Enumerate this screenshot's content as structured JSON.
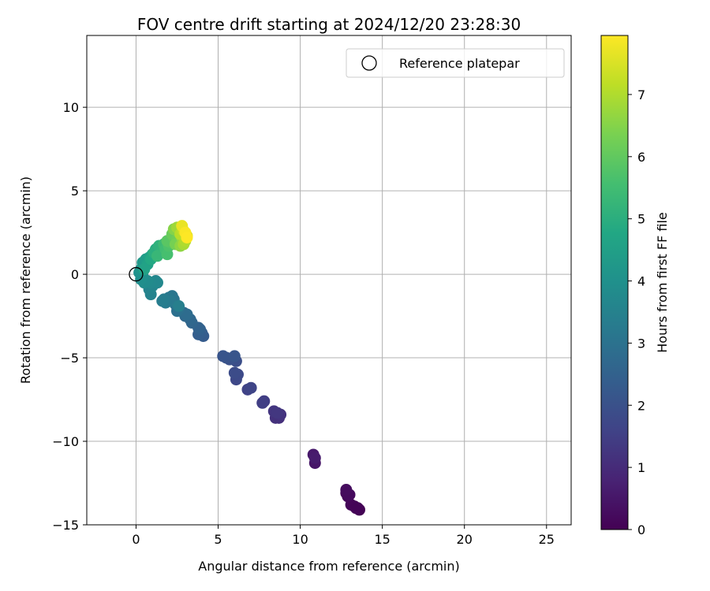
{
  "chart_data": {
    "type": "scatter",
    "title": "FOV centre drift starting at 2024/12/20 23:28:30",
    "xlabel": "Angular distance from reference (arcmin)",
    "ylabel": "Rotation from reference (arcmin)",
    "xlim": [
      -3,
      26.5
    ],
    "ylim": [
      -15,
      14.3
    ],
    "xticks": [
      0,
      5,
      10,
      15,
      20,
      25
    ],
    "yticks": [
      -15,
      -10,
      -5,
      0,
      5,
      10
    ],
    "grid": true,
    "legend": {
      "placement": "top-right",
      "entries": [
        "Reference platepar"
      ]
    },
    "reference_point": {
      "x": 0,
      "y": 0,
      "label": "Reference platepar"
    },
    "colorbar": {
      "label": "Hours from first FF file",
      "colormap": "viridis",
      "range": [
        0,
        7.95
      ],
      "ticks": [
        0,
        1,
        2,
        3,
        4,
        5,
        6,
        7
      ]
    },
    "series": [
      {
        "points": [
          {
            "x": 13.6,
            "y": -14.1,
            "c": 0.0
          },
          {
            "x": 13.3,
            "y": -13.9,
            "c": 0.03
          },
          {
            "x": 13.5,
            "y": -14.0,
            "c": 0.06
          },
          {
            "x": 13.1,
            "y": -13.8,
            "c": 0.1
          },
          {
            "x": 12.9,
            "y": -13.3,
            "c": 0.14
          },
          {
            "x": 12.8,
            "y": -13.1,
            "c": 0.18
          },
          {
            "x": 13.0,
            "y": -13.2,
            "c": 0.22
          },
          {
            "x": 12.8,
            "y": -12.9,
            "c": 0.26
          },
          {
            "x": 13.4,
            "y": -14.0,
            "c": 0.08
          },
          {
            "x": 10.9,
            "y": -11.3,
            "c": 0.5
          },
          {
            "x": 10.8,
            "y": -10.8,
            "c": 0.56
          },
          {
            "x": 10.9,
            "y": -11.0,
            "c": 0.62
          },
          {
            "x": 8.7,
            "y": -8.6,
            "c": 1.1
          },
          {
            "x": 8.5,
            "y": -8.6,
            "c": 1.15
          },
          {
            "x": 8.8,
            "y": -8.4,
            "c": 1.2
          },
          {
            "x": 8.4,
            "y": -8.2,
            "c": 1.25
          },
          {
            "x": 8.6,
            "y": -8.3,
            "c": 1.3
          },
          {
            "x": 7.8,
            "y": -7.6,
            "c": 1.45
          },
          {
            "x": 7.7,
            "y": -7.7,
            "c": 1.5
          },
          {
            "x": 6.8,
            "y": -6.9,
            "c": 1.6
          },
          {
            "x": 7.0,
            "y": -6.8,
            "c": 1.65
          },
          {
            "x": 6.1,
            "y": -6.3,
            "c": 1.75
          },
          {
            "x": 6.2,
            "y": -6.0,
            "c": 1.8
          },
          {
            "x": 6.0,
            "y": -5.9,
            "c": 1.85
          },
          {
            "x": 6.1,
            "y": -5.2,
            "c": 1.9
          },
          {
            "x": 5.9,
            "y": -5.0,
            "c": 1.95
          },
          {
            "x": 5.7,
            "y": -5.1,
            "c": 2.0
          },
          {
            "x": 5.5,
            "y": -5.0,
            "c": 2.05
          },
          {
            "x": 5.3,
            "y": -4.9,
            "c": 2.1
          },
          {
            "x": 6.0,
            "y": -4.9,
            "c": 2.12
          },
          {
            "x": 4.1,
            "y": -3.7,
            "c": 2.3
          },
          {
            "x": 4.0,
            "y": -3.5,
            "c": 2.35
          },
          {
            "x": 3.8,
            "y": -3.6,
            "c": 2.4
          },
          {
            "x": 3.9,
            "y": -3.3,
            "c": 2.45
          },
          {
            "x": 3.8,
            "y": -3.2,
            "c": 2.5
          },
          {
            "x": 3.4,
            "y": -2.9,
            "c": 2.6
          },
          {
            "x": 3.3,
            "y": -2.7,
            "c": 2.65
          },
          {
            "x": 3.0,
            "y": -2.5,
            "c": 2.7
          },
          {
            "x": 2.9,
            "y": -2.3,
            "c": 2.75
          },
          {
            "x": 3.1,
            "y": -2.4,
            "c": 2.8
          },
          {
            "x": 2.6,
            "y": -2.1,
            "c": 2.9
          },
          {
            "x": 2.5,
            "y": -2.2,
            "c": 2.95
          },
          {
            "x": 2.4,
            "y": -1.8,
            "c": 3.0
          },
          {
            "x": 2.3,
            "y": -1.5,
            "c": 3.05
          },
          {
            "x": 2.2,
            "y": -1.3,
            "c": 3.1
          },
          {
            "x": 2.0,
            "y": -1.4,
            "c": 3.15
          },
          {
            "x": 2.1,
            "y": -1.6,
            "c": 3.2
          },
          {
            "x": 1.8,
            "y": -1.7,
            "c": 3.25
          },
          {
            "x": 1.7,
            "y": -1.5,
            "c": 3.3
          },
          {
            "x": 1.6,
            "y": -1.6,
            "c": 3.35
          },
          {
            "x": 2.6,
            "y": -1.9,
            "c": 3.4
          },
          {
            "x": 0.9,
            "y": -1.2,
            "c": 3.5
          },
          {
            "x": 0.8,
            "y": -0.9,
            "c": 3.55
          },
          {
            "x": 1.0,
            "y": -0.7,
            "c": 3.6
          },
          {
            "x": 1.2,
            "y": -0.4,
            "c": 3.65
          },
          {
            "x": 1.3,
            "y": -0.5,
            "c": 3.7
          },
          {
            "x": 0.9,
            "y": -0.5,
            "c": 3.75
          },
          {
            "x": 0.7,
            "y": -0.4,
            "c": 3.8
          },
          {
            "x": 0.5,
            "y": -0.5,
            "c": 3.85
          },
          {
            "x": 0.3,
            "y": -0.3,
            "c": 3.9
          },
          {
            "x": 0.4,
            "y": -0.1,
            "c": 3.95
          },
          {
            "x": 0.2,
            "y": 0.1,
            "c": 4.0
          },
          {
            "x": 0.3,
            "y": 0.3,
            "c": 4.1
          },
          {
            "x": 0.5,
            "y": 0.5,
            "c": 4.2
          },
          {
            "x": 0.4,
            "y": 0.7,
            "c": 4.3
          },
          {
            "x": 0.6,
            "y": 0.9,
            "c": 4.4
          },
          {
            "x": 0.8,
            "y": 1.0,
            "c": 4.5
          },
          {
            "x": 0.7,
            "y": 0.6,
            "c": 4.55
          },
          {
            "x": 0.5,
            "y": 0.3,
            "c": 4.6
          },
          {
            "x": 1.0,
            "y": 1.2,
            "c": 4.7
          },
          {
            "x": 0.9,
            "y": 0.9,
            "c": 4.8
          },
          {
            "x": 1.2,
            "y": 1.5,
            "c": 4.9
          },
          {
            "x": 1.1,
            "y": 1.3,
            "c": 5.0
          },
          {
            "x": 1.4,
            "y": 1.7,
            "c": 5.1
          },
          {
            "x": 1.6,
            "y": 1.4,
            "c": 5.2
          },
          {
            "x": 1.3,
            "y": 1.1,
            "c": 5.3
          },
          {
            "x": 1.7,
            "y": 1.8,
            "c": 5.4
          },
          {
            "x": 1.8,
            "y": 1.5,
            "c": 5.5
          },
          {
            "x": 1.9,
            "y": 1.2,
            "c": 5.6
          },
          {
            "x": 2.0,
            "y": 1.7,
            "c": 5.7
          },
          {
            "x": 2.1,
            "y": 1.9,
            "c": 5.8
          },
          {
            "x": 1.9,
            "y": 2.0,
            "c": 5.9
          },
          {
            "x": 2.3,
            "y": 2.2,
            "c": 6.0
          },
          {
            "x": 2.2,
            "y": 2.4,
            "c": 6.1
          },
          {
            "x": 2.5,
            "y": 2.1,
            "c": 6.2
          },
          {
            "x": 2.4,
            "y": 1.8,
            "c": 6.3
          },
          {
            "x": 2.6,
            "y": 2.5,
            "c": 6.4
          },
          {
            "x": 2.3,
            "y": 2.7,
            "c": 6.5
          },
          {
            "x": 2.7,
            "y": 1.7,
            "c": 6.6
          },
          {
            "x": 2.8,
            "y": 2.2,
            "c": 6.7
          },
          {
            "x": 2.5,
            "y": 2.8,
            "c": 6.8
          },
          {
            "x": 2.9,
            "y": 1.8,
            "c": 6.9
          },
          {
            "x": 3.0,
            "y": 2.0,
            "c": 7.0
          },
          {
            "x": 2.7,
            "y": 2.4,
            "c": 7.1
          },
          {
            "x": 2.9,
            "y": 2.6,
            "c": 7.3
          },
          {
            "x": 3.1,
            "y": 2.3,
            "c": 7.5
          },
          {
            "x": 2.8,
            "y": 2.9,
            "c": 7.7
          },
          {
            "x": 3.0,
            "y": 2.5,
            "c": 7.9
          },
          {
            "x": 3.1,
            "y": 2.2,
            "c": 7.95
          }
        ]
      }
    ]
  }
}
